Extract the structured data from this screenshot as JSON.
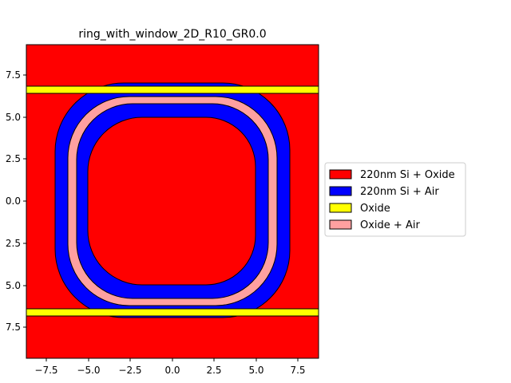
{
  "title": "ring_with_window_2D_R10_GR0.0",
  "axes": {
    "xticks": [
      "−7.5",
      "−5.0",
      "−2.5",
      "0.0",
      "2.5",
      "5.0",
      "7.5"
    ],
    "yticks": [
      "7.5",
      "5.0",
      "2.5",
      "0.0",
      "2.5",
      "5.0",
      "7.5"
    ]
  },
  "legend": {
    "placement": "center-right",
    "items": [
      {
        "label": "220nm Si + Oxide",
        "color": "#ff0000"
      },
      {
        "label": "220nm Si + Air",
        "color": "#0000ff"
      },
      {
        "label": "Oxide",
        "color": "#ffff00"
      },
      {
        "label": "Oxide + Air",
        "color": "#ffa0a0"
      }
    ]
  },
  "colors": {
    "si_oxide": "#ff0000",
    "si_air": "#0000ff",
    "oxide": "#ffff00",
    "oxide_air": "#ffa0a0",
    "outline": "#000000"
  }
}
